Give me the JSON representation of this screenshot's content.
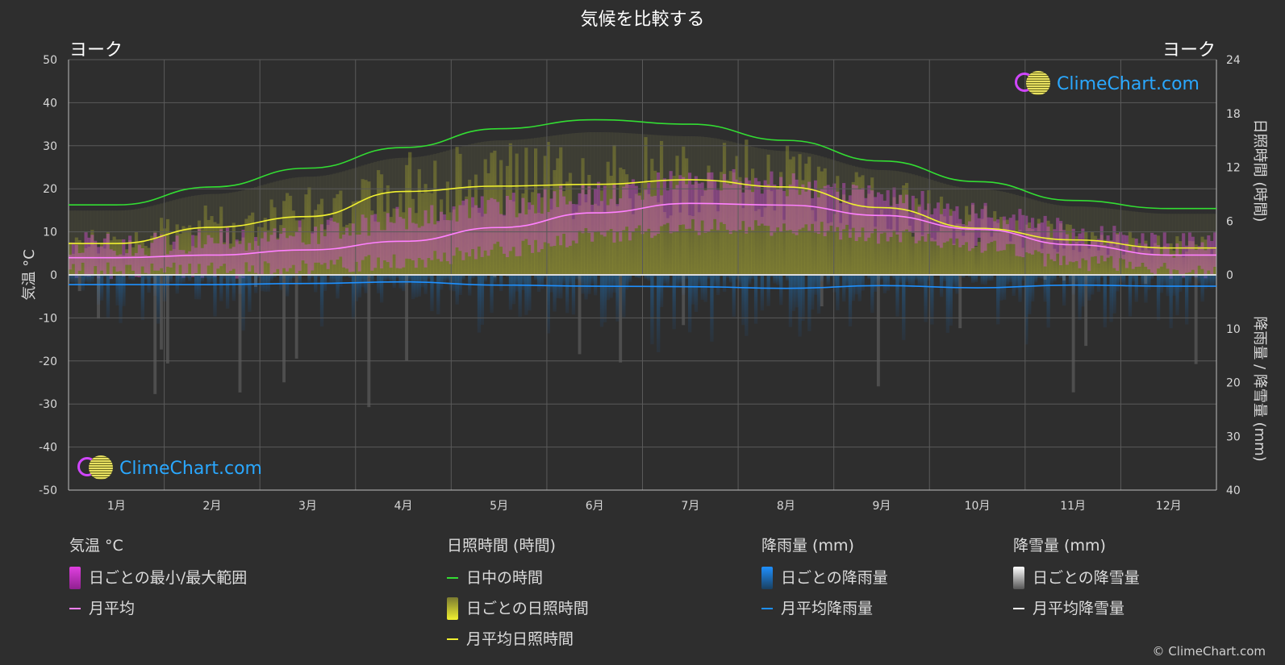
{
  "title": "気候を比較する",
  "location_left": "ヨーク",
  "location_right": "ヨーク",
  "brand": "ClimeChart.com",
  "copyright": "© ClimeChart.com",
  "colors": {
    "background": "#2e2e2e",
    "temp_range": "#d050d0",
    "temp_avg": "#ff80ff",
    "daylight": "#33dd33",
    "sunshine_daily": "#9a9a30",
    "sunshine_avg": "#f0f030",
    "rain_daily": "#1f6fb0",
    "rain_avg": "#1e90ff",
    "snow_avg": "#ffffff"
  },
  "legend": {
    "temp": {
      "title": "気温 °C",
      "items": [
        {
          "label": "日ごとの最小/最大範囲",
          "icon": "temp-range-swatch"
        },
        {
          "label": "月平均",
          "icon": "temp-avg-line"
        }
      ]
    },
    "sun": {
      "title": "日照時間 (時間)",
      "items": [
        {
          "label": "日中の時間",
          "icon": "daylight-line"
        },
        {
          "label": "日ごとの日照時間",
          "icon": "sunshine-swatch"
        },
        {
          "label": "月平均日照時間",
          "icon": "sunshine-avg-line"
        }
      ]
    },
    "rain": {
      "title": "降雨量 (mm)",
      "items": [
        {
          "label": "日ごとの降雨量",
          "icon": "rain-swatch"
        },
        {
          "label": "月平均降雨量",
          "icon": "rain-avg-line"
        }
      ]
    },
    "snow": {
      "title": "降雪量 (mm)",
      "items": [
        {
          "label": "日ごとの降雪量",
          "icon": "snow-swatch"
        },
        {
          "label": "月平均降雪量",
          "icon": "snow-avg-line"
        }
      ]
    }
  },
  "chart_data": {
    "type": "line",
    "categories": [
      "1月",
      "2月",
      "3月",
      "4月",
      "5月",
      "6月",
      "7月",
      "8月",
      "9月",
      "10月",
      "11月",
      "12月"
    ],
    "y_left": {
      "label": "気温 °C",
      "range": [
        -50,
        50
      ],
      "ticks": [
        50,
        40,
        30,
        20,
        10,
        0,
        -10,
        -20,
        -30,
        -40,
        -50
      ]
    },
    "y_right_top": {
      "label": "日照時間 (時間)",
      "range": [
        0,
        24
      ],
      "ticks": [
        24,
        18,
        12,
        6,
        0
      ]
    },
    "y_right_bottom": {
      "label": "降雨量 / 降雪量 (mm)",
      "range": [
        0,
        40
      ],
      "ticks": [
        0,
        10,
        20,
        30,
        40
      ]
    },
    "series": [
      {
        "name": "日中の時間",
        "unit": "hours",
        "values": [
          7.8,
          9.8,
          11.9,
          14.2,
          16.3,
          17.3,
          16.8,
          15.0,
          12.7,
          10.4,
          8.3,
          7.4
        ]
      },
      {
        "name": "月平均日照時間",
        "unit": "hours",
        "values": [
          3.5,
          5.3,
          6.5,
          9.3,
          9.9,
          10.1,
          10.6,
          9.8,
          7.5,
          5.2,
          3.9,
          3.0
        ]
      },
      {
        "name": "月平均",
        "unit": "°C",
        "values": [
          4.0,
          4.6,
          5.8,
          7.8,
          11.0,
          14.4,
          16.6,
          16.2,
          13.8,
          10.6,
          7.0,
          4.6
        ]
      },
      {
        "name": "月平均降雨量",
        "unit": "mm",
        "values": [
          1.8,
          1.8,
          1.6,
          1.3,
          1.9,
          2.1,
          2.2,
          2.5,
          2.0,
          2.4,
          1.9,
          2.1
        ]
      },
      {
        "name": "日ごとの最小/最大範囲",
        "unit": "°C",
        "min": [
          1,
          1,
          2,
          3,
          6,
          9,
          11,
          11,
          9,
          7,
          3,
          1
        ],
        "max": [
          7,
          8,
          10,
          13,
          16,
          19,
          22,
          21,
          18,
          14,
          10,
          7
        ]
      }
    ],
    "grid": true,
    "legend_position": "bottom"
  }
}
